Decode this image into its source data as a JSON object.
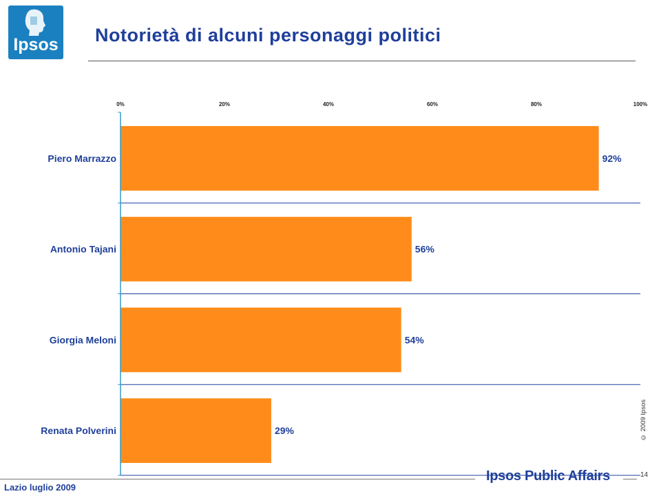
{
  "header": {
    "logo_text": "Ipsos",
    "title": "Notorietà di alcuni personaggi politici"
  },
  "chart_data": {
    "type": "bar",
    "orientation": "horizontal",
    "categories": [
      "Piero Marrazzo",
      "Antonio Tajani",
      "Giorgia Meloni",
      "Renata Polverini"
    ],
    "values": [
      92,
      56,
      54,
      29
    ],
    "value_labels": [
      "92%",
      "56%",
      "54%",
      "29%"
    ],
    "xlim": [
      0,
      100
    ],
    "x_ticks": [
      "0%",
      "20%",
      "40%",
      "60%",
      "80%",
      "100%"
    ],
    "bar_color": "#ff8c1a",
    "axis_color": "#3399cc",
    "grid": false
  },
  "footer": {
    "left_text": "Lazio luglio 2009",
    "brand": "Ipsos Public Affairs",
    "page_number": "14",
    "copyright": "© 2009 Ipsos"
  },
  "colors": {
    "title": "#1f3f9b",
    "logo_bg": "#1b80c0"
  }
}
